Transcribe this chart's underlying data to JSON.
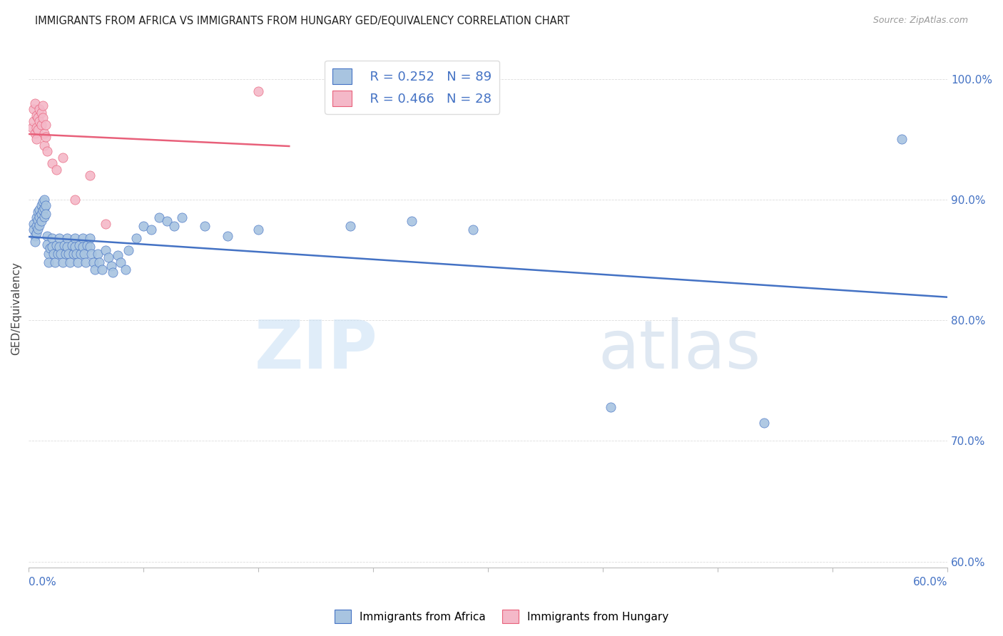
{
  "title": "IMMIGRANTS FROM AFRICA VS IMMIGRANTS FROM HUNGARY GED/EQUIVALENCY CORRELATION CHART",
  "source": "Source: ZipAtlas.com",
  "ylabel": "GED/Equivalency",
  "right_yticks": [
    "100.0%",
    "90.0%",
    "80.0%",
    "70.0%",
    "60.0%"
  ],
  "right_ytick_vals": [
    1.0,
    0.9,
    0.8,
    0.7,
    0.6
  ],
  "xlim": [
    0.0,
    0.6
  ],
  "ylim": [
    0.595,
    1.025
  ],
  "legend_africa": "Immigrants from Africa",
  "legend_hungary": "Immigrants from Hungary",
  "R_africa": 0.252,
  "N_africa": 89,
  "R_hungary": 0.466,
  "N_hungary": 28,
  "color_africa": "#a8c4e0",
  "color_africa_line": "#4472c4",
  "color_hungary": "#f4b8c8",
  "color_hungary_line": "#e8607a",
  "color_blue_text": "#4472c4",
  "watermark_zip": "ZIP",
  "watermark_atlas": "atlas",
  "africa_x": [
    0.003,
    0.003,
    0.004,
    0.004,
    0.005,
    0.005,
    0.005,
    0.006,
    0.006,
    0.006,
    0.007,
    0.007,
    0.007,
    0.008,
    0.008,
    0.008,
    0.009,
    0.009,
    0.01,
    0.01,
    0.01,
    0.011,
    0.011,
    0.012,
    0.012,
    0.013,
    0.013,
    0.014,
    0.015,
    0.015,
    0.016,
    0.017,
    0.018,
    0.019,
    0.02,
    0.02,
    0.021,
    0.022,
    0.023,
    0.024,
    0.025,
    0.025,
    0.026,
    0.027,
    0.028,
    0.029,
    0.03,
    0.03,
    0.031,
    0.032,
    0.033,
    0.034,
    0.035,
    0.035,
    0.036,
    0.037,
    0.038,
    0.04,
    0.04,
    0.041,
    0.042,
    0.043,
    0.045,
    0.046,
    0.048,
    0.05,
    0.052,
    0.054,
    0.055,
    0.058,
    0.06,
    0.063,
    0.065,
    0.07,
    0.075,
    0.08,
    0.085,
    0.09,
    0.095,
    0.1,
    0.115,
    0.13,
    0.15,
    0.21,
    0.25,
    0.29,
    0.38,
    0.48,
    0.57
  ],
  "africa_y": [
    0.88,
    0.875,
    0.87,
    0.865,
    0.885,
    0.878,
    0.872,
    0.89,
    0.883,
    0.876,
    0.892,
    0.886,
    0.879,
    0.895,
    0.888,
    0.882,
    0.898,
    0.891,
    0.9,
    0.893,
    0.886,
    0.895,
    0.888,
    0.87,
    0.863,
    0.855,
    0.848,
    0.86,
    0.868,
    0.861,
    0.855,
    0.848,
    0.862,
    0.855,
    0.868,
    0.861,
    0.855,
    0.848,
    0.862,
    0.855,
    0.868,
    0.861,
    0.855,
    0.848,
    0.862,
    0.855,
    0.868,
    0.861,
    0.855,
    0.848,
    0.862,
    0.855,
    0.868,
    0.861,
    0.855,
    0.848,
    0.862,
    0.868,
    0.861,
    0.855,
    0.848,
    0.842,
    0.855,
    0.848,
    0.842,
    0.858,
    0.852,
    0.845,
    0.84,
    0.854,
    0.848,
    0.842,
    0.858,
    0.868,
    0.878,
    0.875,
    0.885,
    0.882,
    0.878,
    0.885,
    0.878,
    0.87,
    0.875,
    0.878,
    0.882,
    0.875,
    0.728,
    0.715,
    0.95
  ],
  "hungary_x": [
    0.002,
    0.003,
    0.003,
    0.004,
    0.004,
    0.005,
    0.005,
    0.005,
    0.006,
    0.006,
    0.007,
    0.007,
    0.008,
    0.008,
    0.009,
    0.009,
    0.01,
    0.01,
    0.011,
    0.011,
    0.012,
    0.015,
    0.018,
    0.022,
    0.03,
    0.04,
    0.05,
    0.15
  ],
  "hungary_y": [
    0.96,
    0.975,
    0.965,
    0.955,
    0.98,
    0.97,
    0.96,
    0.95,
    0.968,
    0.958,
    0.975,
    0.965,
    0.972,
    0.962,
    0.978,
    0.968,
    0.955,
    0.945,
    0.962,
    0.952,
    0.94,
    0.93,
    0.925,
    0.935,
    0.9,
    0.92,
    0.88,
    0.99
  ]
}
